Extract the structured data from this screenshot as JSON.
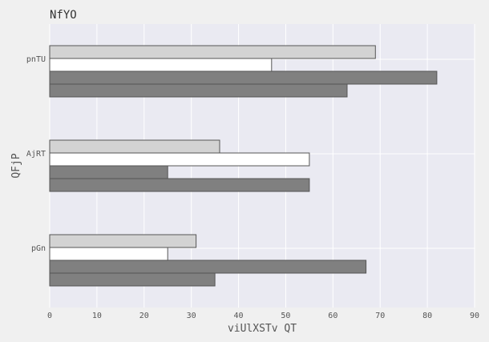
{
  "chart_data": {
    "type": "bar",
    "orientation": "horizontal",
    "title": "NfYO",
    "xlabel": "viUlXSTv QT",
    "ylabel": "QFjP",
    "categories": [
      "pnTU",
      "AjRT",
      "pGn"
    ],
    "xlim": [
      0,
      90
    ],
    "xticks": [
      0,
      10,
      20,
      30,
      40,
      50,
      60,
      70,
      80,
      90
    ],
    "grid": true,
    "series": [
      {
        "color": "#d3d3d3",
        "values": [
          69,
          36,
          31
        ]
      },
      {
        "color": "#ffffff",
        "values": [
          47,
          55,
          25
        ]
      },
      {
        "color": "#808080",
        "values": [
          82,
          25,
          67
        ]
      },
      {
        "color": "#808080",
        "values": [
          63,
          55,
          35
        ]
      }
    ],
    "colors": {
      "background": "#f0f0f0",
      "plot_background": "#eaeaf2",
      "grid": "#ffffff",
      "bar_edge": "#555555"
    }
  }
}
